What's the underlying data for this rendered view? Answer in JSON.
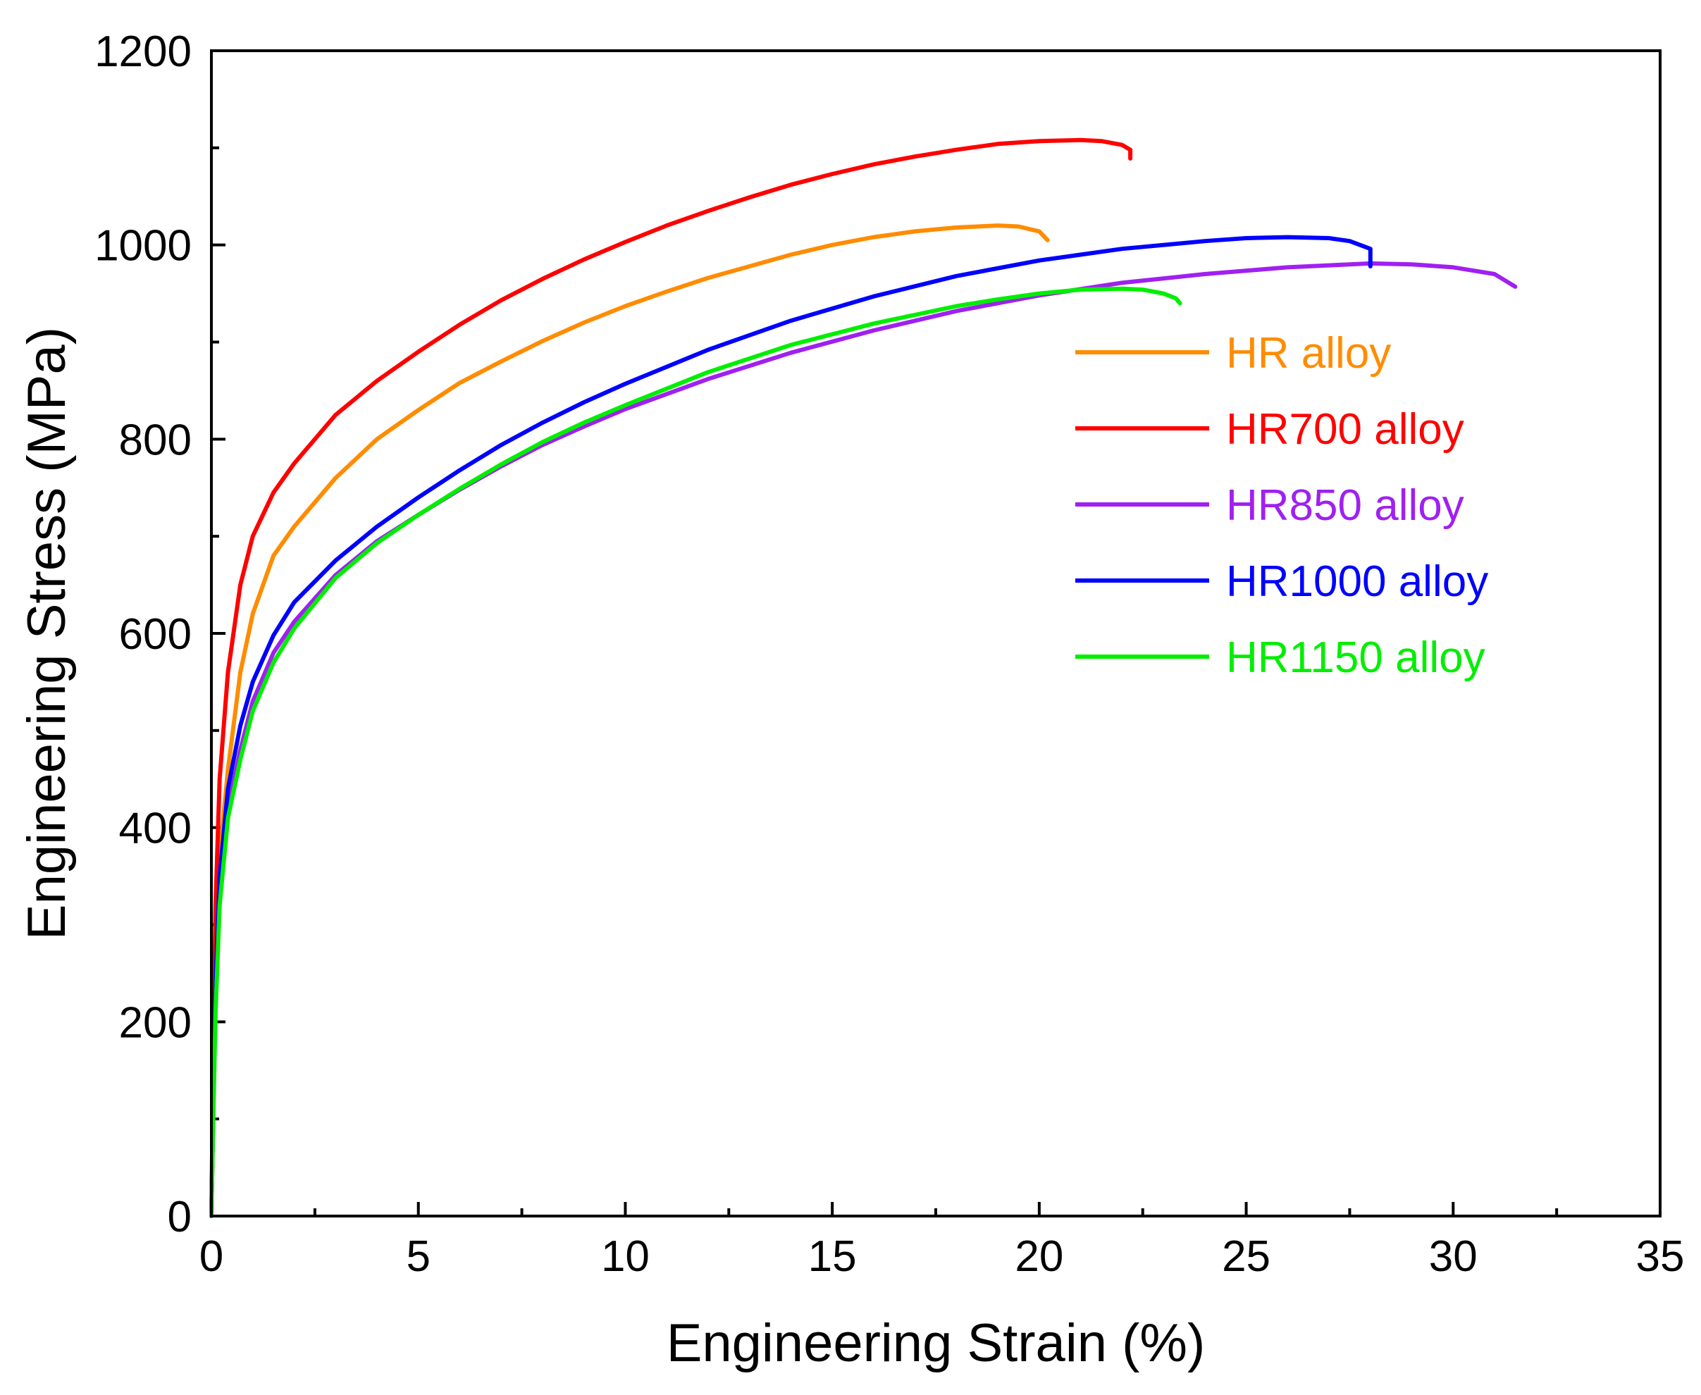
{
  "chart_data": {
    "type": "line",
    "title": "",
    "xlabel": "Engineering Strain (%)",
    "ylabel": "Engineering Stress (MPa)",
    "xlim": [
      0,
      35
    ],
    "ylim": [
      0,
      1200
    ],
    "xticks": [
      0,
      5,
      10,
      15,
      20,
      25,
      30,
      35
    ],
    "yticks": [
      0,
      200,
      400,
      600,
      800,
      1000,
      1200
    ],
    "xtick_labels": [
      "0",
      "5",
      "10",
      "15",
      "20",
      "25",
      "30",
      "35"
    ],
    "ytick_labels": [
      "0",
      "200",
      "400",
      "600",
      "800",
      "1000",
      "1200"
    ],
    "grid": false,
    "legend_position": "right-middle",
    "series": [
      {
        "name": "HR alloy",
        "color": "#ff8c00",
        "x": [
          0,
          0.05,
          0.1,
          0.2,
          0.4,
          0.7,
          1.0,
          1.5,
          2.0,
          3,
          4,
          5,
          6,
          7,
          8,
          9,
          10,
          11,
          12,
          13,
          14,
          15,
          16,
          17,
          18,
          19,
          19.5,
          20,
          20.2
        ],
        "y": [
          0,
          150,
          260,
          370,
          460,
          560,
          620,
          680,
          710,
          760,
          800,
          830,
          858,
          880,
          901,
          920,
          937,
          952,
          966,
          978,
          990,
          1000,
          1008,
          1014,
          1018,
          1020,
          1019,
          1014,
          1005
        ]
      },
      {
        "name": "HR700 alloy",
        "color": "#ff0000",
        "x": [
          0,
          0.05,
          0.1,
          0.2,
          0.4,
          0.7,
          1.0,
          1.5,
          2.0,
          3,
          4,
          5,
          6,
          7,
          8,
          9,
          10,
          11,
          12,
          13,
          14,
          15,
          16,
          17,
          18,
          19,
          20,
          21,
          21.5,
          22,
          22.2,
          22.2
        ],
        "y": [
          0,
          180,
          320,
          450,
          560,
          650,
          700,
          745,
          775,
          825,
          860,
          890,
          918,
          943,
          965,
          985,
          1003,
          1020,
          1035,
          1049,
          1062,
          1073,
          1083,
          1091,
          1098,
          1104,
          1107,
          1108,
          1107,
          1103,
          1098,
          1089
        ]
      },
      {
        "name": "HR850 alloy",
        "color": "#a020f0",
        "x": [
          0,
          0.05,
          0.1,
          0.2,
          0.4,
          0.7,
          1.0,
          1.5,
          2.0,
          3,
          4,
          5,
          6,
          7,
          8,
          9,
          10,
          12,
          14,
          16,
          18,
          20,
          22,
          24,
          26,
          27,
          28,
          29,
          30,
          31,
          31.5
        ],
        "y": [
          0,
          120,
          220,
          330,
          420,
          480,
          530,
          580,
          612,
          660,
          695,
          722,
          748,
          772,
          794,
          813,
          831,
          862,
          889,
          912,
          932,
          948,
          961,
          970,
          977,
          979,
          981,
          980,
          977,
          970,
          957
        ]
      },
      {
        "name": "HR1000 alloy",
        "color": "#0000ff",
        "x": [
          0,
          0.05,
          0.1,
          0.2,
          0.4,
          0.7,
          1.0,
          1.5,
          2.0,
          3,
          4,
          5,
          6,
          7,
          8,
          9,
          10,
          12,
          14,
          16,
          18,
          20,
          22,
          24,
          25,
          26,
          27,
          27.5,
          28,
          28
        ],
        "y": [
          0,
          130,
          240,
          350,
          440,
          505,
          550,
          598,
          632,
          675,
          710,
          740,
          768,
          794,
          817,
          838,
          857,
          892,
          922,
          947,
          968,
          984,
          996,
          1004,
          1007,
          1008,
          1007,
          1004,
          996,
          978
        ]
      },
      {
        "name": "HR1150 alloy",
        "color": "#00ee00",
        "x": [
          0,
          0.05,
          0.1,
          0.2,
          0.4,
          0.7,
          1.0,
          1.5,
          2.0,
          3,
          4,
          5,
          6,
          7,
          8,
          9,
          10,
          12,
          14,
          16,
          18,
          19,
          20,
          21,
          22,
          22.5,
          23,
          23.3,
          23.4
        ],
        "y": [
          0,
          110,
          210,
          320,
          410,
          470,
          520,
          570,
          605,
          657,
          693,
          722,
          749,
          774,
          797,
          817,
          835,
          869,
          897,
          919,
          937,
          944,
          950,
          954,
          955,
          954,
          950,
          945,
          940
        ]
      }
    ]
  }
}
